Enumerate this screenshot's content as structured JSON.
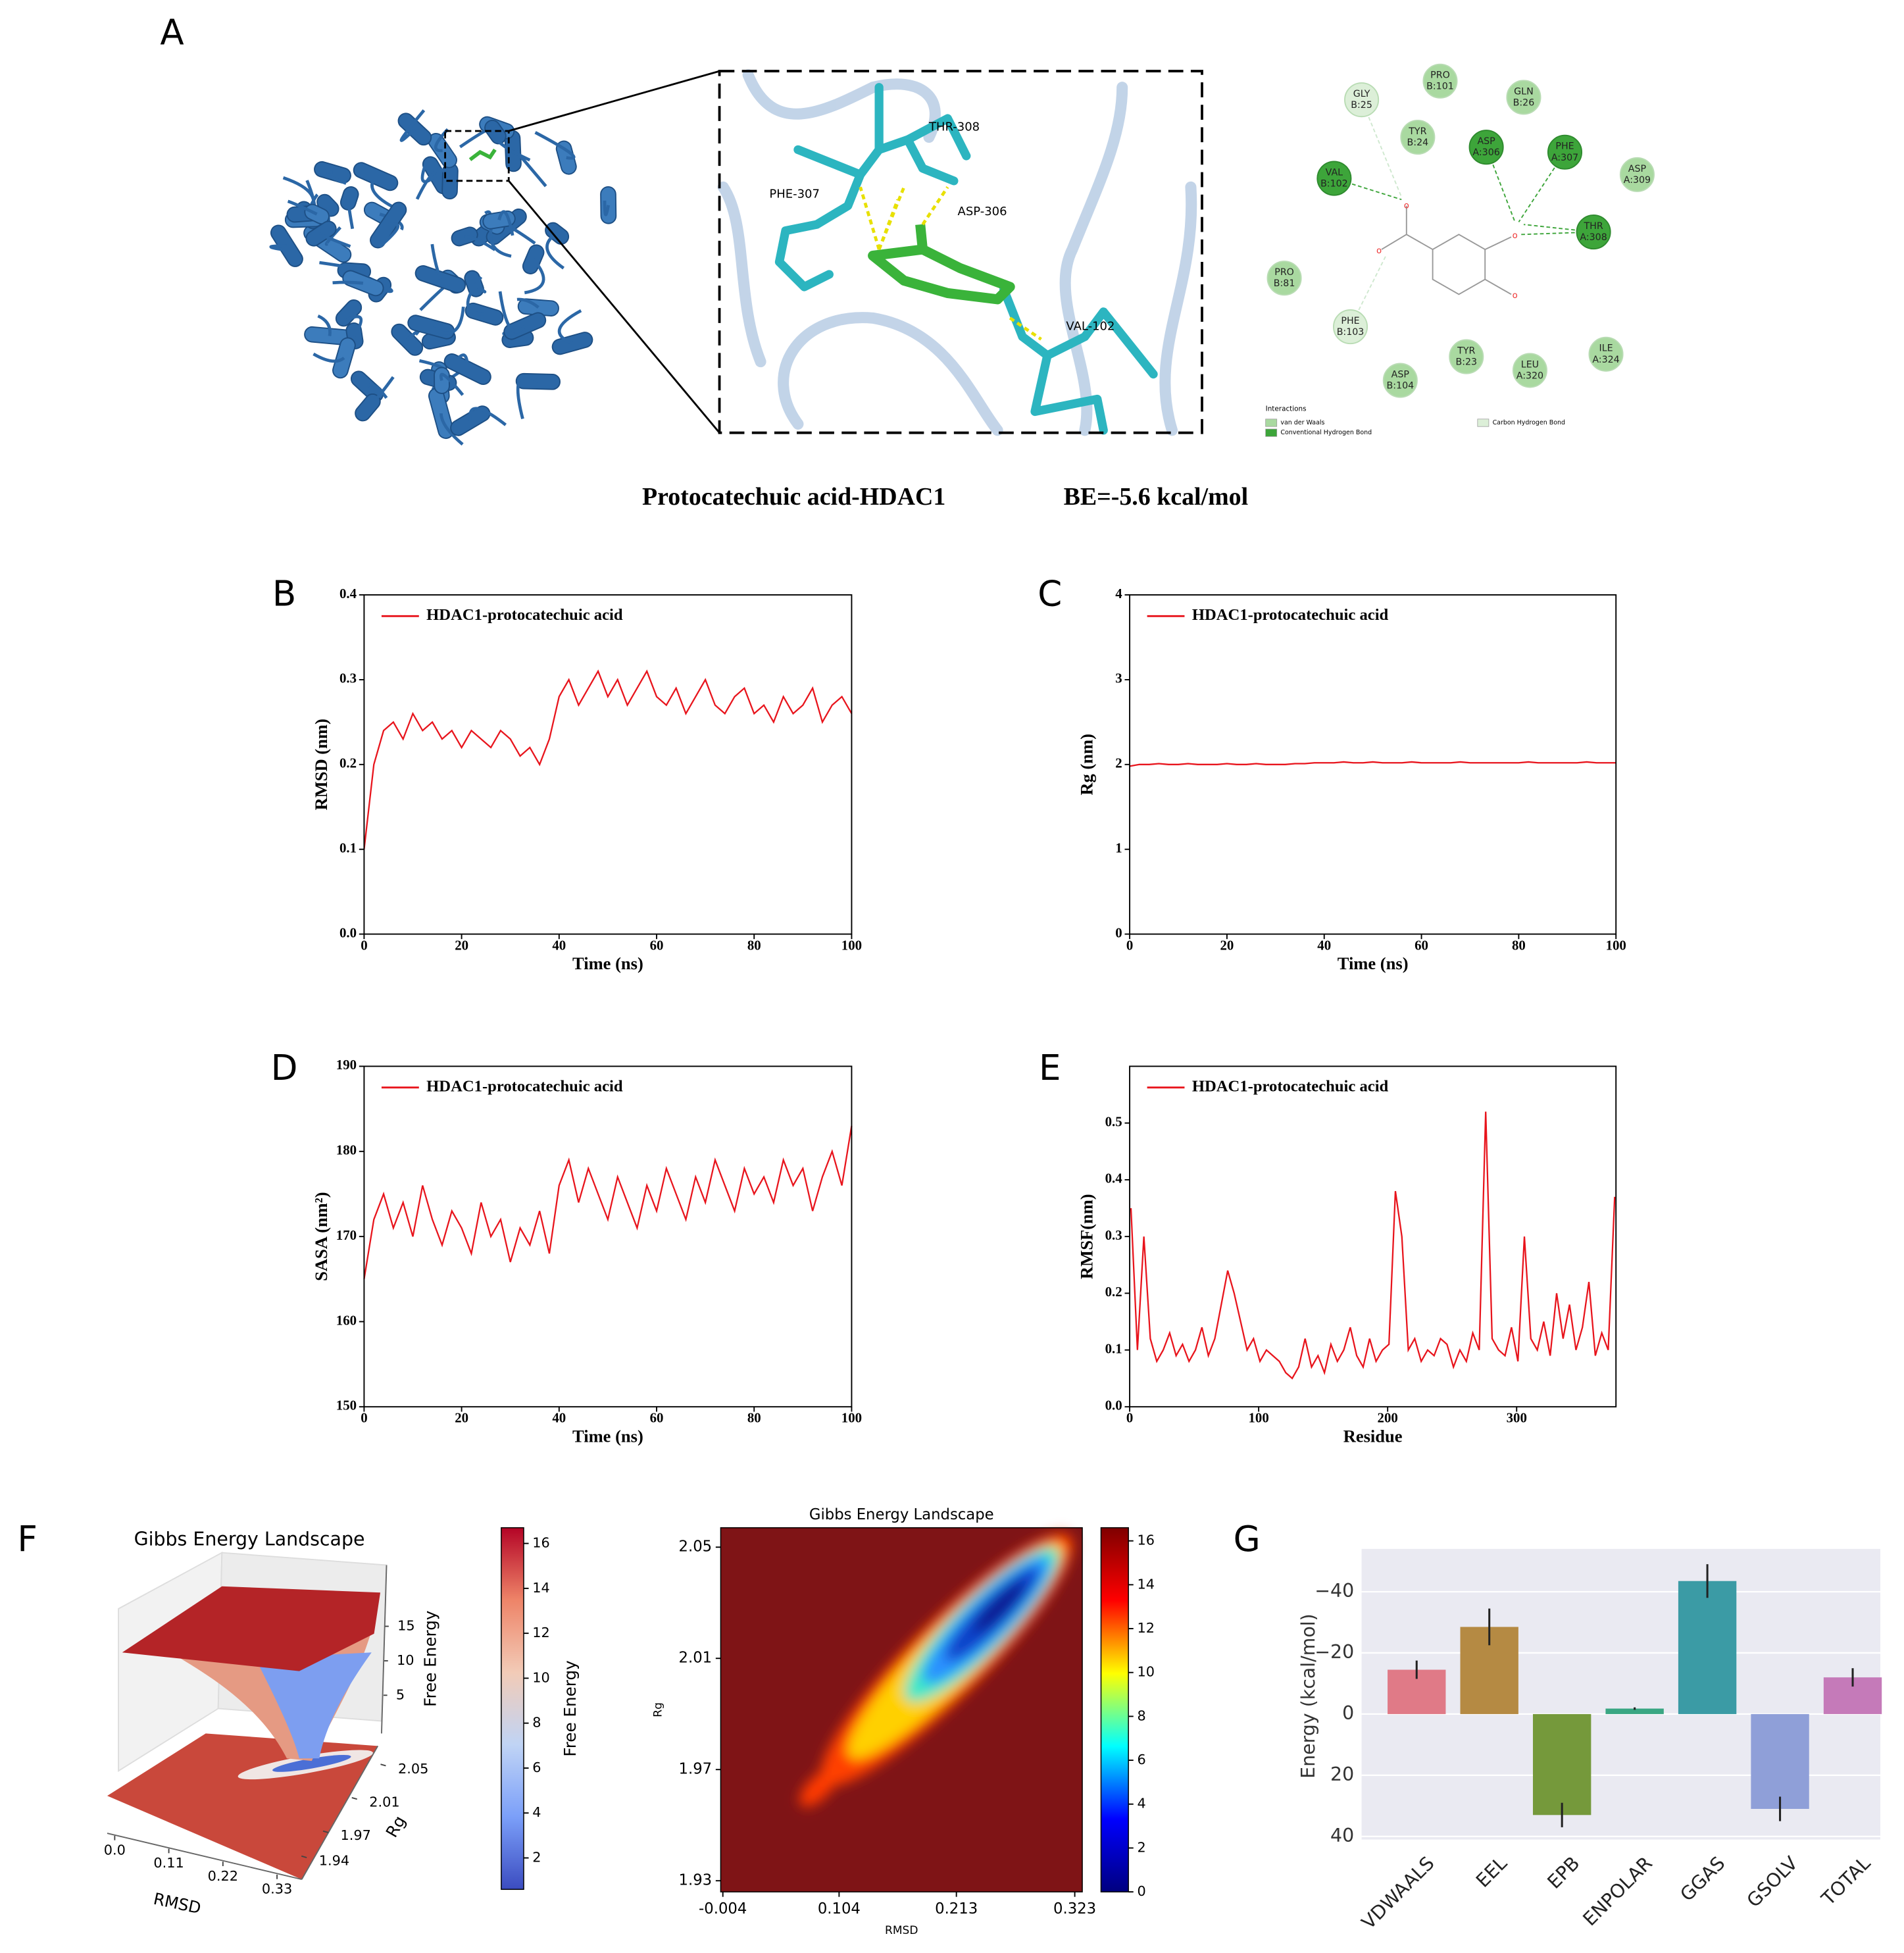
{
  "panel_a": {
    "label": "A",
    "title": "Protocatechuic acid-HDAC1",
    "subtitle": "BE=-5.6 kcal/mol",
    "zoom_labels": [
      "THR-308",
      "PHE-307",
      "ASP-306",
      "VAL-102"
    ],
    "interactions": {
      "legend_title": "Interactions",
      "legend": [
        {
          "name": "van der Waals",
          "color": "#a9d9a0"
        },
        {
          "name": "Conventional Hydrogen Bond",
          "color": "#3da53a"
        },
        {
          "name": "Carbon Hydrogen Bond",
          "color": "#dcefd8"
        }
      ],
      "residues": [
        {
          "name": "GLY",
          "id": "B:25",
          "bond": 2
        },
        {
          "name": "PRO",
          "id": "B:101",
          "bond": 0
        },
        {
          "name": "GLN",
          "id": "B:26",
          "bond": 0
        },
        {
          "name": "TYR",
          "id": "B:24",
          "bond": 0
        },
        {
          "name": "ASP",
          "id": "A:306",
          "bond": 1
        },
        {
          "name": "PHE",
          "id": "A:307",
          "bond": 1
        },
        {
          "name": "ASP",
          "id": "A:309",
          "bond": 0
        },
        {
          "name": "VAL",
          "id": "B:102",
          "bond": 1
        },
        {
          "name": "THR",
          "id": "A:308",
          "bond": 1
        },
        {
          "name": "PRO",
          "id": "B:81",
          "bond": 0
        },
        {
          "name": "PHE",
          "id": "B:103",
          "bond": 2
        },
        {
          "name": "TYR",
          "id": "B:23",
          "bond": 0
        },
        {
          "name": "LEU",
          "id": "A:320",
          "bond": 0
        },
        {
          "name": "ILE",
          "id": "A:324",
          "bond": 0
        },
        {
          "name": "ASP",
          "id": "B:104",
          "bond": 0
        }
      ]
    }
  },
  "chart_data": [
    {
      "type": "line",
      "label": "B",
      "xlabel": "Time (ns)",
      "ylabel": "RMSD (nm)",
      "xlim": [
        0,
        100
      ],
      "ylim": [
        0,
        0.4
      ],
      "xticks": [
        0,
        20,
        40,
        60,
        80,
        100
      ],
      "yticks": [
        {
          "value": 0,
          "label": "0.0"
        },
        0.1,
        0.2,
        0.3,
        0.4
      ],
      "x": [
        0,
        2,
        4,
        6,
        8,
        10,
        12,
        14,
        16,
        18,
        20,
        22,
        24,
        26,
        28,
        30,
        32,
        34,
        36,
        38,
        40,
        42,
        44,
        46,
        48,
        50,
        52,
        54,
        56,
        58,
        60,
        62,
        64,
        66,
        68,
        70,
        72,
        74,
        76,
        78,
        80,
        82,
        84,
        86,
        88,
        90,
        92,
        94,
        96,
        98,
        100
      ],
      "series": [
        {
          "name": "HDAC1-protocatechuic acid",
          "color": "#e8141c",
          "values": [
            0.1,
            0.2,
            0.24,
            0.25,
            0.23,
            0.26,
            0.24,
            0.25,
            0.23,
            0.24,
            0.22,
            0.24,
            0.23,
            0.22,
            0.24,
            0.23,
            0.21,
            0.22,
            0.2,
            0.23,
            0.28,
            0.3,
            0.27,
            0.29,
            0.31,
            0.28,
            0.3,
            0.27,
            0.29,
            0.31,
            0.28,
            0.27,
            0.29,
            0.26,
            0.28,
            0.3,
            0.27,
            0.26,
            0.28,
            0.29,
            0.26,
            0.27,
            0.25,
            0.28,
            0.26,
            0.27,
            0.29,
            0.25,
            0.27,
            0.28,
            0.26
          ]
        }
      ]
    },
    {
      "type": "line",
      "label": "C",
      "xlabel": "Time (ns)",
      "ylabel": "Rg (nm)",
      "xlim": [
        0,
        100
      ],
      "ylim": [
        0,
        4
      ],
      "xticks": [
        0,
        20,
        40,
        60,
        80,
        100
      ],
      "yticks": [
        0,
        1,
        2,
        3,
        4
      ],
      "x": [
        0,
        2,
        4,
        6,
        8,
        10,
        12,
        14,
        16,
        18,
        20,
        22,
        24,
        26,
        28,
        30,
        32,
        34,
        36,
        38,
        40,
        42,
        44,
        46,
        48,
        50,
        52,
        54,
        56,
        58,
        60,
        62,
        64,
        66,
        68,
        70,
        72,
        74,
        76,
        78,
        80,
        82,
        84,
        86,
        88,
        90,
        92,
        94,
        96,
        98,
        100
      ],
      "series": [
        {
          "name": "HDAC1-protocatechuic acid",
          "color": "#e8141c",
          "values": [
            1.98,
            2.0,
            2.0,
            2.01,
            2.0,
            2.0,
            2.01,
            2.0,
            2.0,
            2.0,
            2.01,
            2.0,
            2.0,
            2.01,
            2.0,
            2.0,
            2.0,
            2.01,
            2.01,
            2.02,
            2.02,
            2.02,
            2.03,
            2.02,
            2.02,
            2.03,
            2.02,
            2.02,
            2.02,
            2.03,
            2.02,
            2.02,
            2.02,
            2.02,
            2.03,
            2.02,
            2.02,
            2.02,
            2.02,
            2.02,
            2.02,
            2.03,
            2.02,
            2.02,
            2.02,
            2.02,
            2.02,
            2.03,
            2.02,
            2.02,
            2.02
          ]
        }
      ]
    },
    {
      "type": "line",
      "label": "D",
      "xlabel": "Time (ns)",
      "ylabel": "SASA (nm²)",
      "xlim": [
        0,
        100
      ],
      "ylim": [
        150,
        190
      ],
      "xticks": [
        0,
        20,
        40,
        60,
        80,
        100
      ],
      "yticks": [
        150,
        160,
        170,
        180,
        190
      ],
      "x": [
        0,
        2,
        4,
        6,
        8,
        10,
        12,
        14,
        16,
        18,
        20,
        22,
        24,
        26,
        28,
        30,
        32,
        34,
        36,
        38,
        40,
        42,
        44,
        46,
        48,
        50,
        52,
        54,
        56,
        58,
        60,
        62,
        64,
        66,
        68,
        70,
        72,
        74,
        76,
        78,
        80,
        82,
        84,
        86,
        88,
        90,
        92,
        94,
        96,
        98,
        100
      ],
      "series": [
        {
          "name": "HDAC1-protocatechuic acid",
          "color": "#e8141c",
          "values": [
            165,
            172,
            175,
            171,
            174,
            170,
            176,
            172,
            169,
            173,
            171,
            168,
            174,
            170,
            172,
            167,
            171,
            169,
            173,
            168,
            176,
            179,
            174,
            178,
            175,
            172,
            177,
            174,
            171,
            176,
            173,
            178,
            175,
            172,
            177,
            174,
            179,
            176,
            173,
            178,
            175,
            177,
            174,
            179,
            176,
            178,
            173,
            177,
            180,
            176,
            183
          ]
        }
      ]
    },
    {
      "type": "line",
      "label": "E",
      "xlabel": "Residue",
      "ylabel": "RMSF(nm)",
      "xlim": [
        0,
        377
      ],
      "ylim": [
        0,
        0.6
      ],
      "xticks": [
        0,
        100,
        200,
        300
      ],
      "yticks": [
        {
          "value": 0,
          "label": "0.0"
        },
        0.1,
        0.2,
        0.3,
        0.4,
        0.5
      ],
      "x": [
        1,
        6,
        11,
        16,
        21,
        26,
        31,
        36,
        41,
        46,
        51,
        56,
        61,
        66,
        71,
        76,
        81,
        86,
        91,
        96,
        101,
        106,
        111,
        116,
        121,
        126,
        131,
        136,
        141,
        146,
        151,
        156,
        161,
        166,
        171,
        176,
        181,
        186,
        191,
        196,
        201,
        206,
        211,
        216,
        221,
        226,
        231,
        236,
        241,
        246,
        251,
        256,
        261,
        266,
        271,
        276,
        281,
        286,
        291,
        296,
        301,
        306,
        311,
        316,
        321,
        326,
        331,
        336,
        341,
        346,
        351,
        356,
        361,
        366,
        371,
        376
      ],
      "series": [
        {
          "name": "HDAC1-protocatechuic acid",
          "color": "#e8141c",
          "values": [
            0.35,
            0.1,
            0.3,
            0.12,
            0.08,
            0.1,
            0.13,
            0.09,
            0.11,
            0.08,
            0.1,
            0.14,
            0.09,
            0.12,
            0.18,
            0.24,
            0.2,
            0.15,
            0.1,
            0.12,
            0.08,
            0.1,
            0.09,
            0.08,
            0.06,
            0.05,
            0.07,
            0.12,
            0.07,
            0.09,
            0.06,
            0.11,
            0.08,
            0.1,
            0.14,
            0.09,
            0.07,
            0.12,
            0.08,
            0.1,
            0.11,
            0.38,
            0.3,
            0.1,
            0.12,
            0.08,
            0.1,
            0.09,
            0.12,
            0.11,
            0.07,
            0.1,
            0.08,
            0.13,
            0.1,
            0.52,
            0.12,
            0.1,
            0.09,
            0.14,
            0.08,
            0.3,
            0.12,
            0.1,
            0.15,
            0.09,
            0.2,
            0.12,
            0.18,
            0.1,
            0.14,
            0.22,
            0.09,
            0.13,
            0.1,
            0.37
          ]
        }
      ]
    },
    {
      "type": "surface3d",
      "label": "F",
      "title": "Gibbs Energy Landscape",
      "xlabel": "RMSD",
      "ylabel": "Rg",
      "zlabel": "Free Energy",
      "xlim": [
        0,
        0.36
      ],
      "xticks": [
        {
          "value": 0,
          "label": "0.0"
        },
        0.11,
        0.22,
        0.33
      ],
      "ylim": [
        1.93,
        2.06
      ],
      "yticks": [
        1.94,
        1.97,
        2.01,
        2.05
      ],
      "zlim": [
        0,
        17
      ],
      "zticks": [
        5,
        10,
        15
      ],
      "colorbar": {
        "colormap": "coolwarm",
        "clim": [
          0.6,
          16.7
        ],
        "ticks": [
          2,
          4,
          6,
          8,
          10,
          12,
          14,
          16
        ],
        "label": "Free Energy"
      }
    },
    {
      "type": "heatmap",
      "title": "Gibbs Energy Landscape",
      "xlabel": "RMSD",
      "ylabel": "Rg",
      "xlim": [
        -0.006,
        0.33
      ],
      "xticks": [
        -0.004,
        0.104,
        0.213,
        0.323
      ],
      "ylim": [
        1.926,
        2.057
      ],
      "yticks": [
        1.93,
        1.97,
        2.01,
        2.05
      ],
      "colorbar": {
        "colormap": "jet",
        "clim": [
          0,
          16.6
        ],
        "ticks": [
          0,
          2,
          4,
          6,
          8,
          10,
          12,
          14,
          16
        ]
      }
    },
    {
      "type": "bar",
      "label": "G",
      "ylabel": "Energy (kcal/mol)",
      "ylim": [
        -54,
        41
      ],
      "y_inverted": true,
      "grid": true,
      "categories": [
        "VDWAALS",
        "EEL",
        "EPB",
        "ENPOLAR",
        "GGAS",
        "GSOLV",
        "TOTAL"
      ],
      "values": [
        -14.5,
        -28.5,
        33,
        -1.8,
        -43.5,
        31,
        -12
      ],
      "errors": [
        3,
        6,
        4,
        0.4,
        5.5,
        4,
        3
      ],
      "colors": [
        "#e07a87",
        "#b58a43",
        "#75993b",
        "#3aa683",
        "#3b9ba5",
        "#8f9fd8",
        "#c57ab9"
      ],
      "yticks": [
        {
          "value": -40,
          "label": "−40"
        },
        {
          "value": -20,
          "label": "−20"
        },
        0,
        20,
        40
      ]
    }
  ]
}
